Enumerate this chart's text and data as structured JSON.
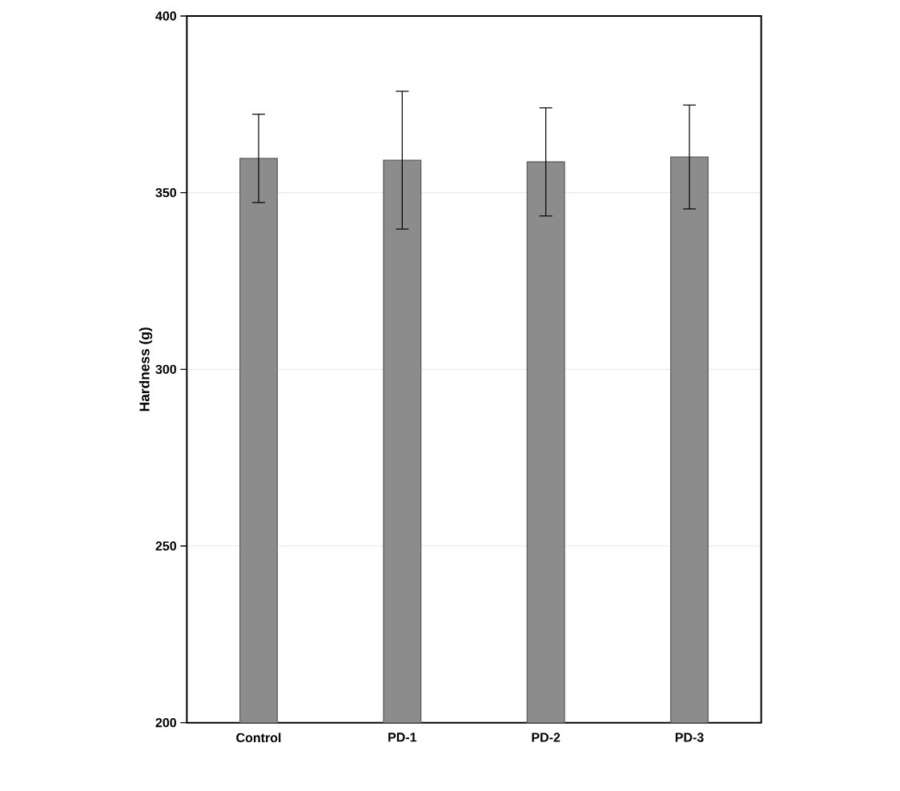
{
  "chart_data": {
    "type": "bar",
    "ylabel": "Hardness (g)",
    "categories": [
      "Control",
      "PD-1",
      "PD-2",
      "PD-3"
    ],
    "values": [
      359.7,
      359.2,
      358.7,
      360.1
    ],
    "errors": [
      12.5,
      19.5,
      15.3,
      14.7
    ],
    "color": "#8c8c8c",
    "ylim": [
      200,
      400
    ],
    "yticks": [
      200,
      250,
      300,
      350,
      400
    ],
    "grid": "y"
  }
}
